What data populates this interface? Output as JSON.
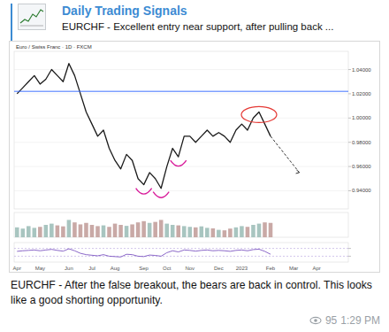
{
  "header": {
    "channel": "Daily Trading Signals",
    "preview": "EURCHF - Excellent entry near support, after pulling back ..."
  },
  "chart_data": [
    {
      "type": "line",
      "title": "Euro / Swiss Franc · 1D · FXCM",
      "color": "#1a1a1a",
      "grid": true,
      "tick_labels": "y",
      "values": [
        1.02,
        1.025,
        1.03,
        1.035,
        1.028,
        1.032,
        1.04,
        1.035,
        1.03,
        1.045,
        1.035,
        1.02,
        1.005,
        0.995,
        0.985,
        0.99,
        0.975,
        0.965,
        0.958,
        0.97,
        0.965,
        0.95,
        0.945,
        0.955,
        0.95,
        0.942,
        0.96,
        0.975,
        0.968,
        0.985,
        0.985,
        0.98,
        0.985,
        0.99,
        0.985,
        0.988,
        0.985,
        0.98,
        0.99,
        0.995,
        0.99,
        1.0,
        1.005,
        0.995,
        0.985,
        null,
        null,
        null,
        null,
        null,
        null,
        null,
        null,
        null,
        null,
        null,
        null,
        null
      ],
      "ylim": [
        0.925,
        1.055
      ],
      "yticks": [
        {
          "value": 0.94,
          "label": "0.94000"
        },
        {
          "value": 0.96,
          "label": "0.96000"
        },
        {
          "value": 0.98,
          "label": "0.98000"
        },
        {
          "value": 1.0,
          "label": "1.00000"
        },
        {
          "value": 1.02,
          "label": "1.02000"
        },
        {
          "value": 1.04,
          "label": "1.04000"
        }
      ],
      "resistance": 1.022,
      "target": 0.955
    },
    {
      "type": "bar",
      "color": "#c9a9a6",
      "tick_labels": false,
      "ylim": [
        0,
        100
      ],
      "values": [
        40,
        35,
        45,
        38,
        42,
        50,
        55,
        48,
        44,
        70,
        60,
        52,
        58,
        50,
        45,
        48,
        42,
        55,
        50,
        46,
        52,
        60,
        65,
        58,
        62,
        70,
        55,
        50,
        48,
        45,
        42,
        40,
        44,
        38,
        36,
        30,
        28,
        35,
        40,
        45,
        42,
        50,
        55,
        60,
        58,
        null,
        null,
        null,
        null,
        null,
        null,
        null,
        null,
        null,
        null,
        null,
        null,
        null
      ]
    },
    {
      "type": "line",
      "color": "#7e57c2",
      "tick_labels": "x",
      "ylim": [
        0,
        100
      ],
      "yticks": [
        30,
        70
      ],
      "values": [
        55,
        58,
        60,
        62,
        58,
        62,
        65,
        60,
        56,
        68,
        58,
        45,
        38,
        35,
        32,
        38,
        30,
        28,
        26,
        40,
        38,
        30,
        28,
        36,
        34,
        30,
        48,
        58,
        52,
        62,
        60,
        56,
        60,
        62,
        58,
        60,
        58,
        55,
        60,
        62,
        58,
        64,
        66,
        55,
        40,
        null,
        null,
        null,
        null,
        null,
        null,
        null,
        null,
        null,
        null,
        null,
        null,
        null
      ],
      "categories": [
        "Apr",
        null,
        null,
        null,
        "May",
        null,
        null,
        null,
        null,
        "Jun",
        null,
        null,
        null,
        "Jul",
        null,
        null,
        null,
        "Aug",
        null,
        null,
        null,
        null,
        "Sep",
        null,
        null,
        null,
        "Oct",
        null,
        null,
        null,
        "Nov",
        null,
        null,
        null,
        null,
        "Dec",
        null,
        null,
        null,
        "2023",
        null,
        null,
        null,
        null,
        "Feb",
        null,
        null,
        null,
        "Mar",
        null,
        null,
        null,
        "Apr",
        null,
        null,
        null,
        null,
        null
      ]
    }
  ],
  "message": {
    "text": "EURCHF - After the false breakout, the bears are back in control. This looks like a good shorting opportunity.",
    "views": 95,
    "time": "1:29 PM"
  }
}
